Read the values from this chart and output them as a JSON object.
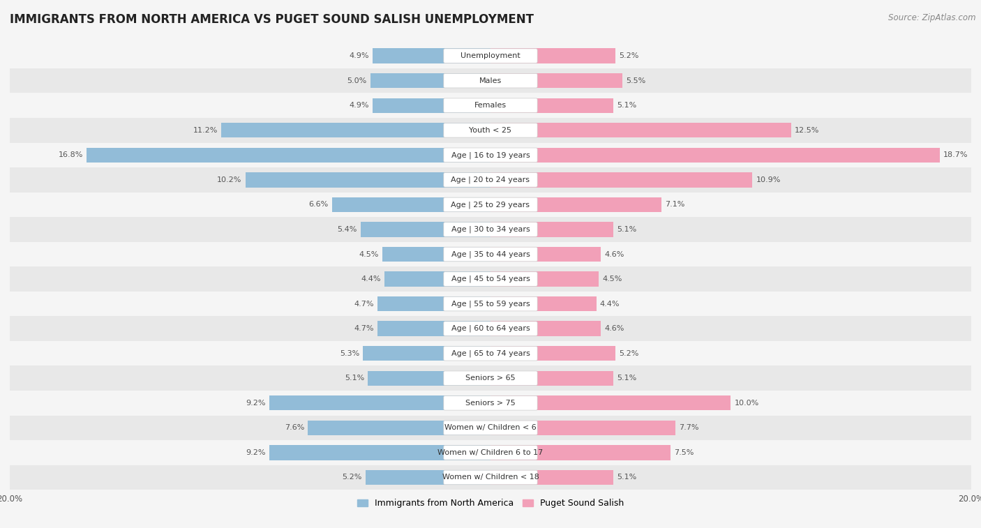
{
  "title": "IMMIGRANTS FROM NORTH AMERICA VS PUGET SOUND SALISH UNEMPLOYMENT",
  "source": "Source: ZipAtlas.com",
  "categories": [
    "Unemployment",
    "Males",
    "Females",
    "Youth < 25",
    "Age | 16 to 19 years",
    "Age | 20 to 24 years",
    "Age | 25 to 29 years",
    "Age | 30 to 34 years",
    "Age | 35 to 44 years",
    "Age | 45 to 54 years",
    "Age | 55 to 59 years",
    "Age | 60 to 64 years",
    "Age | 65 to 74 years",
    "Seniors > 65",
    "Seniors > 75",
    "Women w/ Children < 6",
    "Women w/ Children 6 to 17",
    "Women w/ Children < 18"
  ],
  "left_values": [
    4.9,
    5.0,
    4.9,
    11.2,
    16.8,
    10.2,
    6.6,
    5.4,
    4.5,
    4.4,
    4.7,
    4.7,
    5.3,
    5.1,
    9.2,
    7.6,
    9.2,
    5.2
  ],
  "right_values": [
    5.2,
    5.5,
    5.1,
    12.5,
    18.7,
    10.9,
    7.1,
    5.1,
    4.6,
    4.5,
    4.4,
    4.6,
    5.2,
    5.1,
    10.0,
    7.7,
    7.5,
    5.1
  ],
  "left_color": "#92bcd8",
  "right_color": "#f2a0b8",
  "left_label": "Immigrants from North America",
  "right_label": "Puget Sound Salish",
  "xlim": 20.0,
  "row_colors": [
    "#f5f5f5",
    "#e8e8e8"
  ],
  "bar_label_bg": "#ffffff",
  "title_fontsize": 12,
  "source_fontsize": 8.5,
  "axis_label_fontsize": 8.5,
  "category_fontsize": 8,
  "value_fontsize": 8
}
